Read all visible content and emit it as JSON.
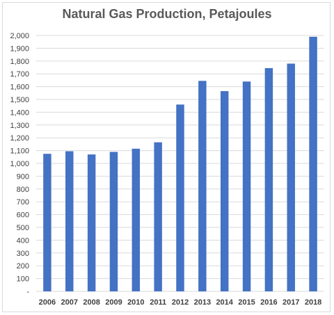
{
  "chart_data": {
    "type": "bar",
    "title": "Natural Gas Production, Petajoules",
    "categories": [
      "2006",
      "2007",
      "2008",
      "2009",
      "2010",
      "2011",
      "2012",
      "2013",
      "2014",
      "2015",
      "2016",
      "2017",
      "2018"
    ],
    "series": [
      {
        "values": [
          1075,
          1095,
          1070,
          1090,
          1115,
          1165,
          1460,
          1645,
          1565,
          1640,
          1745,
          1780,
          1990
        ]
      }
    ],
    "ylim": [
      0,
      2000
    ],
    "yticks": [
      "-",
      "100",
      "200",
      "300",
      "400",
      "500",
      "600",
      "700",
      "800",
      "900",
      "1,000",
      "1,100",
      "1,200",
      "1,300",
      "1,400",
      "1,500",
      "1,600",
      "1,700",
      "1,800",
      "1,900",
      "2,000"
    ],
    "grid": true,
    "bar_color": "#4472c4",
    "grid_color": "#d9d9d9",
    "legend": "none"
  }
}
